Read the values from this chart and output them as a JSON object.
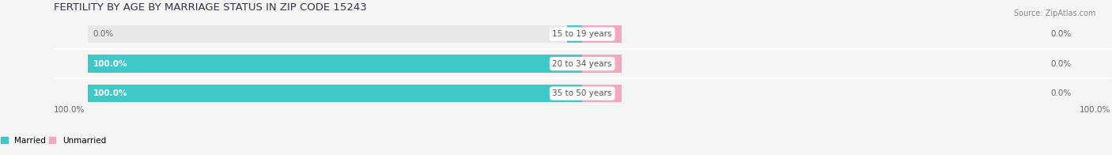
{
  "title": "FERTILITY BY AGE BY MARRIAGE STATUS IN ZIP CODE 15243",
  "source": "Source: ZipAtlas.com",
  "categories": [
    "15 to 19 years",
    "20 to 34 years",
    "35 to 50 years"
  ],
  "married_values": [
    0.0,
    100.0,
    100.0
  ],
  "unmarried_values": [
    0.0,
    0.0,
    0.0
  ],
  "married_color": "#3ec8c8",
  "unmarried_color": "#f4a8bc",
  "bar_bg_color": "#e8e8ea",
  "title_fontsize": 9.5,
  "label_fontsize": 7.5,
  "tick_fontsize": 7.5,
  "source_fontsize": 7,
  "bg_color": "#f5f5f5",
  "left_labels": [
    "0.0%",
    "100.0%",
    "100.0%"
  ],
  "right_labels": [
    "0.0%",
    "0.0%",
    "0.0%"
  ],
  "bottom_left_label": "100.0%",
  "bottom_right_label": "100.0%",
  "bar_total": 100.0,
  "bar_height": 0.6
}
